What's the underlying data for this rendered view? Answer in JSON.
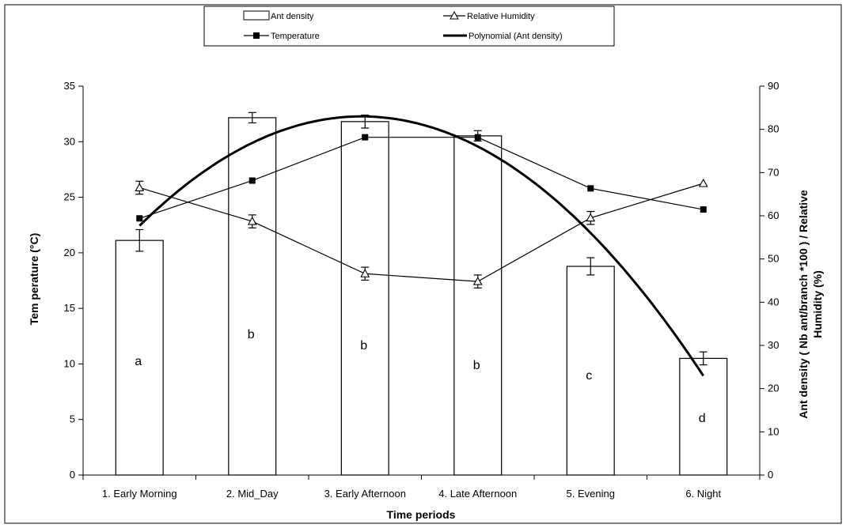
{
  "chart_data": {
    "type": "bar",
    "categories": [
      "1. Early Morning",
      "2. Mid_Day",
      "3. Early Afternoon",
      "4. Late Afternoon",
      "5. Evening",
      "6. Night"
    ],
    "xlabel": "Time periods",
    "ylabel_left": "Tem perature (°C)",
    "ylabel_right": "Ant density ( Nb ant/branch *100 ) / Relative Humidity (%)",
    "ylabel_right_lines": [
      "Ant density ( Nb ant/branch *100 ) / Relative",
      "Humidity (%)"
    ],
    "ylim_left": [
      0,
      35
    ],
    "ylim_right": [
      0,
      90
    ],
    "yticks_left": [
      0,
      5,
      10,
      15,
      20,
      25,
      30,
      35
    ],
    "yticks_right": [
      0,
      10,
      20,
      30,
      40,
      50,
      60,
      70,
      80,
      90
    ],
    "legend": {
      "position": "top",
      "entries": [
        "Ant density",
        "Relative Humidity",
        "Temperature",
        "Polynomial (Ant density)"
      ]
    },
    "series": [
      {
        "name": "Ant density",
        "kind": "bar",
        "axis": "right",
        "values": [
          54.3,
          82.7,
          81.8,
          78.5,
          48.3,
          27.0
        ],
        "errors": [
          2.5,
          1.2,
          1.5,
          1.2,
          2.0,
          1.5
        ],
        "significance_letters": [
          "a",
          "b",
          "b",
          "b",
          "c",
          "d"
        ]
      },
      {
        "name": "Relative Humidity",
        "kind": "line",
        "marker": "open-triangle",
        "axis": "right",
        "values": [
          66.5,
          58.7,
          46.6,
          44.8,
          59.5,
          67.5
        ],
        "errors": [
          1.5,
          1.5,
          1.5,
          1.5,
          1.5,
          0
        ]
      },
      {
        "name": "Temperature",
        "kind": "line",
        "marker": "filled-square",
        "axis": "left",
        "values": [
          23.1,
          26.5,
          30.4,
          30.4,
          25.8,
          23.9
        ]
      },
      {
        "name": "Polynomial (Ant density)",
        "kind": "trendline",
        "axis": "right",
        "polynomial_order": 2
      }
    ]
  }
}
